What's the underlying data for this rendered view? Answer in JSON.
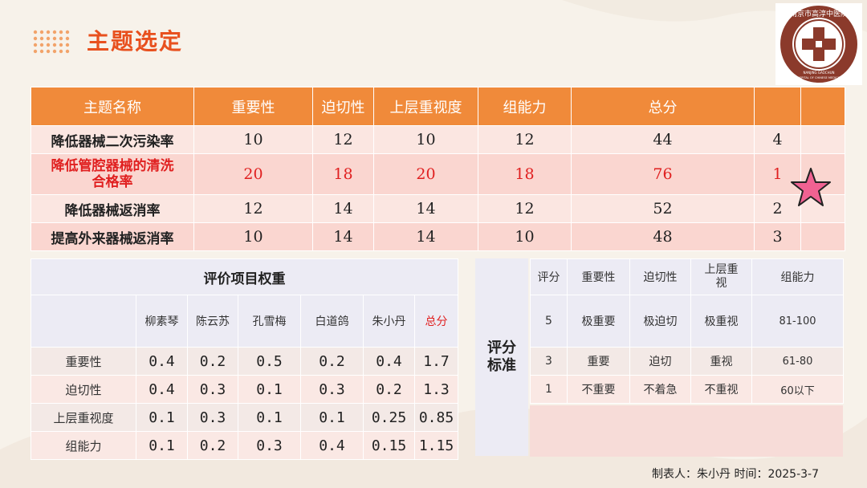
{
  "title": "主题选定",
  "logo": {
    "name_cn": "南京市高淳中医院",
    "name_en_1": "NANJING GAOCHUN",
    "name_en_2": "HOSPITAL OF CHINESE MEDICINE"
  },
  "topic_table": {
    "headers": [
      "主题名称",
      "重要性",
      "迫切性",
      "上层重视度",
      "组能力",
      "总分",
      "",
      ""
    ],
    "rows": [
      {
        "name": "降低器械二次污染率",
        "importance": "10",
        "urgency": "12",
        "leadership": "10",
        "capability": "12",
        "total": "44",
        "rank": "4"
      },
      {
        "name_line1": "降低管腔器械的清洗",
        "name_line2": "合格率",
        "importance": "20",
        "urgency": "18",
        "leadership": "20",
        "capability": "18",
        "total": "76",
        "rank": "1"
      },
      {
        "name": "降低器械返消率",
        "importance": "12",
        "urgency": "14",
        "leadership": "14",
        "capability": "12",
        "total": "52",
        "rank": "2"
      },
      {
        "name": "提高外来器械返消率",
        "importance": "10",
        "urgency": "14",
        "leadership": "14",
        "capability": "10",
        "total": "48",
        "rank": "3"
      }
    ],
    "highlight_color": "#e02020",
    "star_icon": "star-icon"
  },
  "weights": {
    "title": "评价项目权重",
    "people": [
      "柳素琴",
      "陈云苏",
      "孔雪梅",
      "白道鸽",
      "朱小丹"
    ],
    "total_label": "总分",
    "rows": [
      {
        "label": "重要性",
        "values": [
          "0.4",
          "0.2",
          "0.5",
          "0.2",
          "0.4"
        ],
        "total": "1.7"
      },
      {
        "label": "迫切性",
        "values": [
          "0.4",
          "0.3",
          "0.1",
          "0.3",
          "0.2"
        ],
        "total": "1.3"
      },
      {
        "label": "上层重视度",
        "values": [
          "0.1",
          "0.3",
          "0.1",
          "0.1",
          "0.25"
        ],
        "total": "0.85"
      },
      {
        "label": "组能力",
        "values": [
          "0.1",
          "0.2",
          "0.3",
          "0.4",
          "0.15"
        ],
        "total": "1.15"
      }
    ]
  },
  "standard": {
    "label_line1": "评分",
    "label_line2": "标准",
    "headers": [
      "评分",
      "重要性",
      "迫切性",
      "上层重",
      "视",
      "组能力"
    ],
    "rows": [
      {
        "score": "5",
        "importance": "极重要",
        "urgency": "极迫切",
        "leadership": "极重视",
        "capability": "81-100"
      },
      {
        "score": "3",
        "importance": "重要",
        "urgency": "迫切",
        "leadership": "重视",
        "capability": "61-80"
      },
      {
        "score": "1",
        "importance": "不重要",
        "urgency": "不着急",
        "leadership": "不重视",
        "capability": "60以下"
      }
    ]
  },
  "footer": "制表人：朱小丹 时间：2025-3-7",
  "colors": {
    "accent": "#e8501e",
    "header_orange": "#f08a3a",
    "row_pink": "#fbe6e1",
    "lavender": "#ecebf4",
    "star": "#f06292"
  }
}
